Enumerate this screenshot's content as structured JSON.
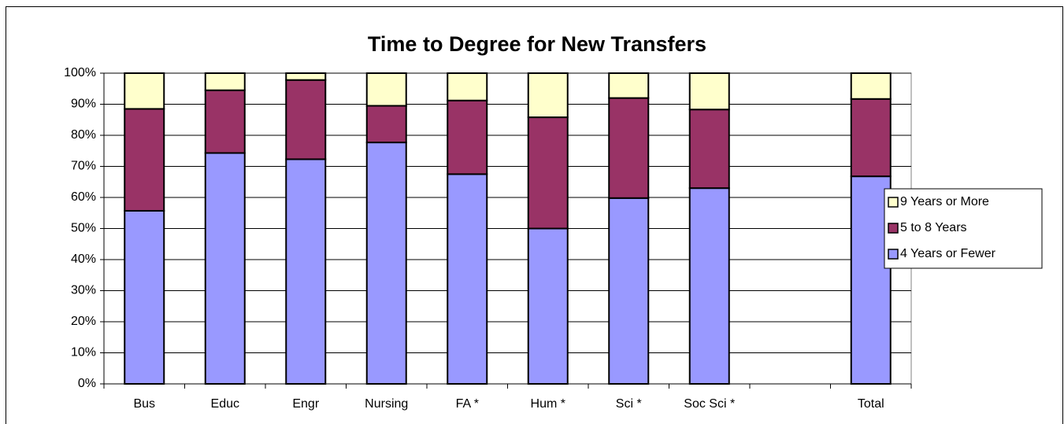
{
  "chart_data": {
    "type": "stacked_bar",
    "title": "Time to Degree for New Transfers",
    "categories": [
      "Bus",
      "Educ",
      "Engr",
      "Nursing",
      "FA *",
      "Hum *",
      "Sci *",
      "Soc Sci *",
      null,
      "Total"
    ],
    "series": [
      {
        "name": "4 Years or Fewer",
        "color": "#9999ff",
        "values": [
          55.7,
          74.3,
          72.3,
          77.7,
          67.5,
          50,
          59.8,
          63,
          null,
          66.8
        ]
      },
      {
        "name": "5 to 8 Years",
        "color": "#993366",
        "values": [
          32.8,
          20.2,
          25.5,
          11.8,
          23.7,
          35.8,
          32.2,
          25.3,
          null,
          24.9
        ]
      },
      {
        "name": "9 Years or More",
        "color": "#ffffcc",
        "values": [
          11.5,
          5.5,
          2.2,
          10.5,
          8.8,
          14.2,
          8,
          11.7,
          null,
          8.3
        ]
      }
    ],
    "ylim": [
      0,
      100
    ],
    "yticks": [
      {
        "value": 0,
        "label": "0%"
      },
      {
        "value": 10,
        "label": "10%"
      },
      {
        "value": 20,
        "label": "20%"
      },
      {
        "value": 30,
        "label": "30%"
      },
      {
        "value": 40,
        "label": "40%"
      },
      {
        "value": 50,
        "label": "50%"
      },
      {
        "value": 60,
        "label": "60%"
      },
      {
        "value": 70,
        "label": "70%"
      },
      {
        "value": 80,
        "label": "80%"
      },
      {
        "value": 90,
        "label": "90%"
      },
      {
        "value": 100,
        "label": "100%"
      }
    ],
    "grid": true,
    "legend": "right"
  }
}
